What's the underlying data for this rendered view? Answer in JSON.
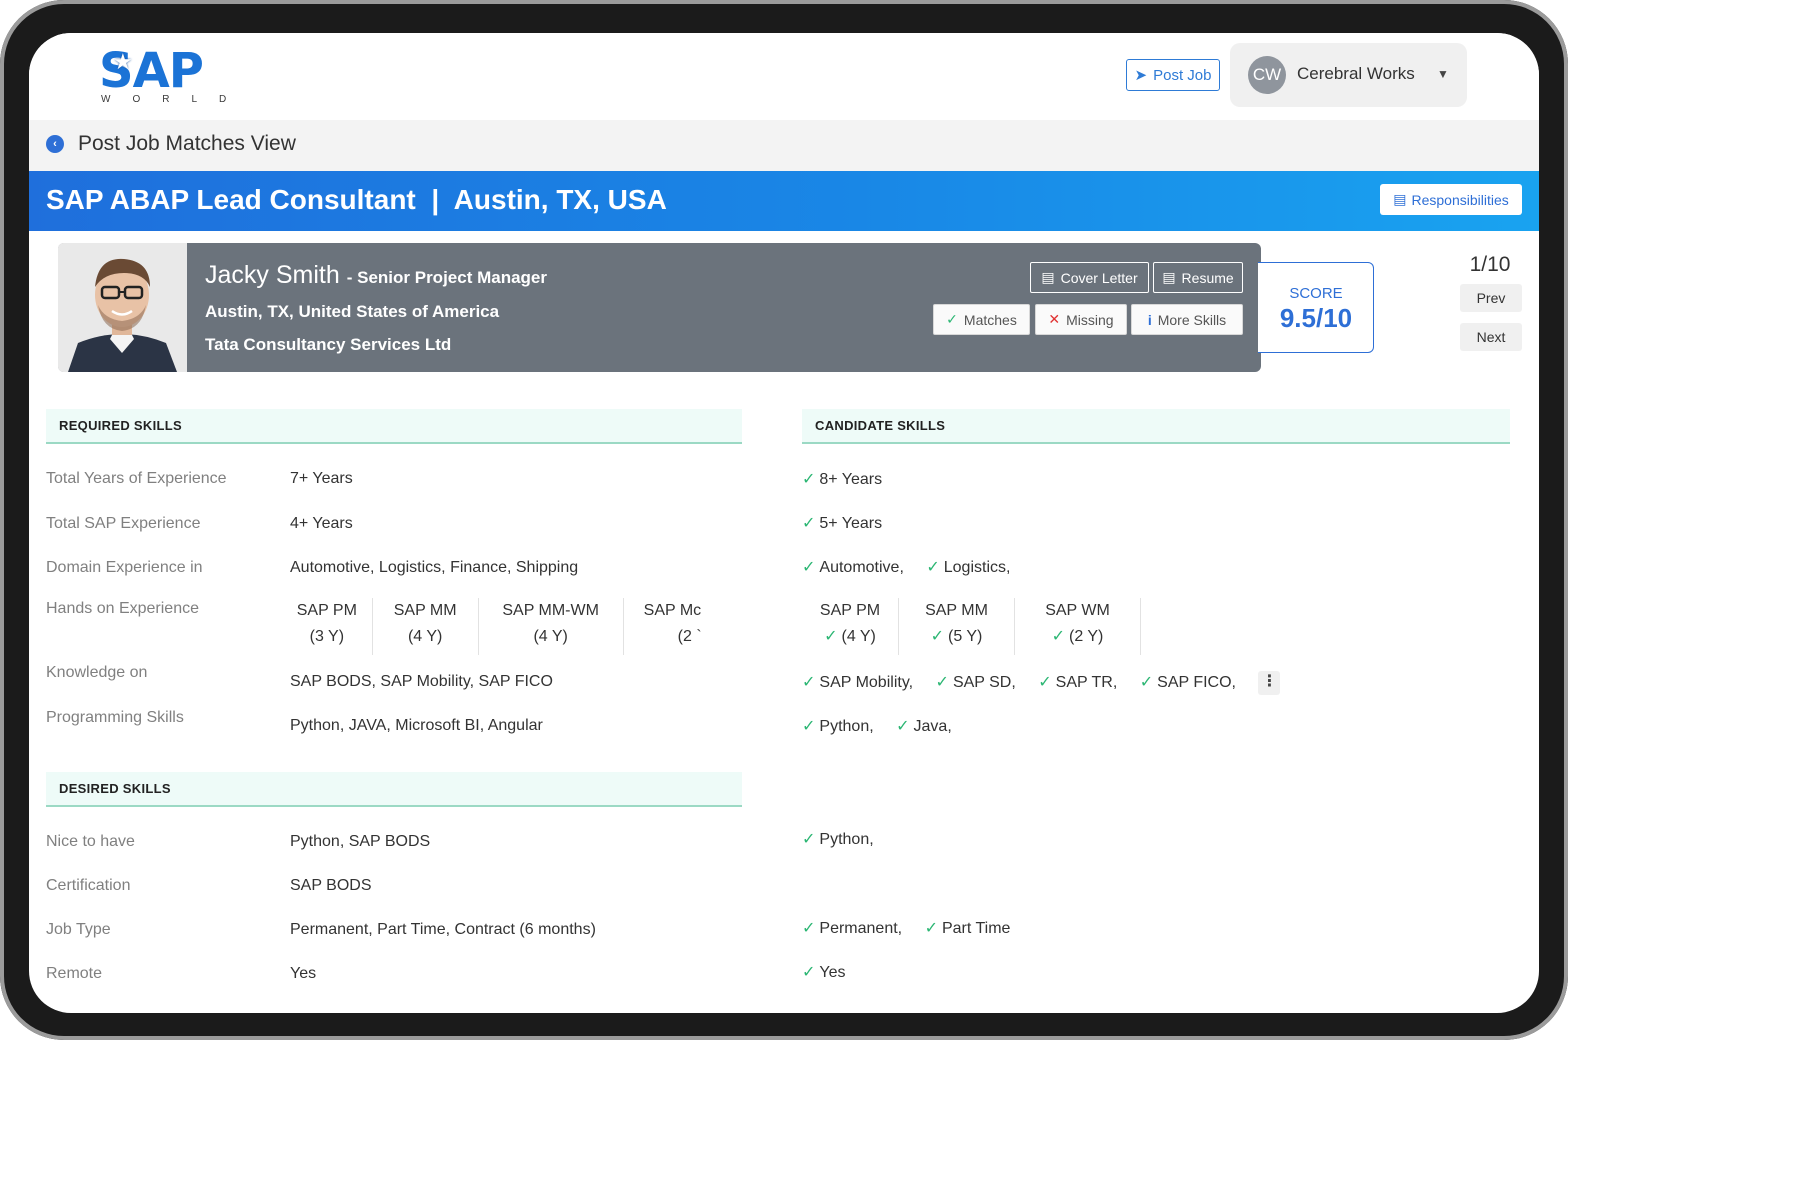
{
  "header": {
    "logo_main": "SAP",
    "logo_sub": "WORLD",
    "post_job_label": "Post Job",
    "user": {
      "initials": "CW",
      "name": "Cerebral Works"
    }
  },
  "subbar": {
    "title": "Post Job Matches View"
  },
  "job": {
    "title": "SAP ABAP Lead Consultant  |  Austin, TX, USA",
    "responsibilities_label": "Responsibilities"
  },
  "candidate": {
    "name": "Jacky Smith",
    "role": "- Senior Project Manager",
    "location": "Austin, TX, United States of America",
    "company": "Tata Consultancy Services Ltd",
    "buttons": {
      "cover_letter": "Cover Letter",
      "resume": "Resume",
      "matches": "Matches",
      "missing": "Missing",
      "more_skills": "More Skills"
    }
  },
  "score": {
    "label": "SCORE",
    "value": "9.5/10"
  },
  "pager": {
    "position": "1/10",
    "prev": "Prev",
    "next": "Next"
  },
  "required": {
    "heading": "REQUIRED SKILLS",
    "candidate_heading": "CANDIDATE SKILLS",
    "rows": [
      {
        "label": "Total Years of Experience",
        "value": "7+ Years",
        "candidate": [
          "8+ Years"
        ]
      },
      {
        "label": "Total SAP Experience",
        "value": "4+ Years",
        "candidate": [
          "5+ Years"
        ]
      },
      {
        "label": "Domain Experience in",
        "value": "Automotive, Logistics, Finance, Shipping",
        "candidate": [
          "Automotive,",
          "Logistics,"
        ]
      },
      {
        "label": "Hands on Experience"
      },
      {
        "label": "Knowledge on",
        "value": "SAP BODS, SAP Mobility, SAP FICO",
        "candidate": [
          "SAP Mobility,",
          "SAP SD,",
          "SAP TR,",
          "SAP FICO,"
        ]
      },
      {
        "label": "Programming Skills",
        "value": "Python, JAVA, Microsoft BI, Angular",
        "candidate": [
          "Python,",
          "Java,"
        ]
      }
    ],
    "hands_required": [
      {
        "name": "SAP PM",
        "years": "(3 Y)"
      },
      {
        "name": "SAP MM",
        "years": "(4 Y)"
      },
      {
        "name": "SAP MM-WM",
        "years": "(4 Y)"
      },
      {
        "name": "SAP Mc",
        "years": "(2 `"
      }
    ],
    "hands_candidate": [
      {
        "name": "SAP PM",
        "years": "(4 Y)"
      },
      {
        "name": "SAP MM",
        "years": "(5 Y)"
      },
      {
        "name": "SAP WM",
        "years": "(2 Y)"
      }
    ]
  },
  "desired": {
    "heading": "DESIRED SKILLS",
    "rows": [
      {
        "label": "Nice to have",
        "value": "Python, SAP BODS",
        "candidate": [
          "Python,"
        ]
      },
      {
        "label": "Certification",
        "value": "SAP BODS",
        "candidate": []
      },
      {
        "label": "Job Type",
        "value": "Permanent, Part Time, Contract (6 months)",
        "candidate": [
          "Permanent,",
          "Part Time"
        ]
      },
      {
        "label": "Remote",
        "value": "Yes",
        "candidate": [
          "Yes"
        ]
      }
    ]
  },
  "colors": {
    "primary": "#2e6fd6",
    "check": "#2bb673",
    "card": "#6b737c",
    "section_bg": "#eefbf8"
  }
}
